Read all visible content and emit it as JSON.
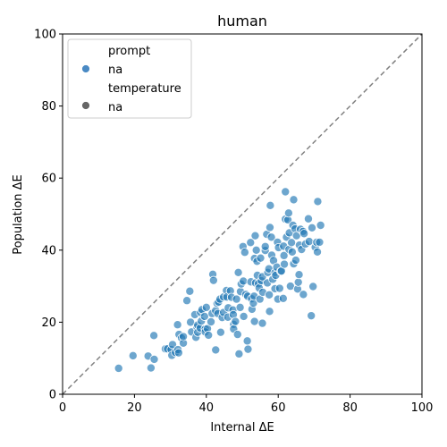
{
  "chart_data": {
    "type": "scatter",
    "title": "human",
    "xlabel": "Internal ΔE",
    "ylabel": "Population ΔE",
    "xlim": [
      0,
      100
    ],
    "ylim": [
      0,
      100
    ],
    "xticks": [
      0,
      20,
      40,
      60,
      80,
      100
    ],
    "yticks": [
      0,
      20,
      40,
      60,
      80,
      100
    ],
    "grid": false,
    "reference_line": "y = x (dashed, gray)",
    "legend": {
      "placement": "top-left",
      "entries": [
        {
          "text": "prompt",
          "kind": "header"
        },
        {
          "text": "na",
          "kind": "marker",
          "color": "#4a8ac4"
        },
        {
          "text": "temperature",
          "kind": "header"
        },
        {
          "text": "na",
          "kind": "marker",
          "color": "#666666"
        }
      ]
    },
    "colors": {
      "point": "#1f77b4",
      "point_edge": "#ffffff",
      "reference_line": "#808080"
    },
    "points": [
      [
        15.6,
        7.2
      ],
      [
        19.6,
        10.7
      ],
      [
        23.8,
        10.6
      ],
      [
        24.6,
        7.3
      ],
      [
        25.5,
        9.7
      ],
      [
        25.4,
        16.3
      ],
      [
        28.6,
        12.6
      ],
      [
        29.2,
        12.6
      ],
      [
        30.2,
        12.4
      ],
      [
        30.4,
        10.8
      ],
      [
        30.6,
        13.8
      ],
      [
        31.4,
        11.6
      ],
      [
        32.1,
        12.4
      ],
      [
        32.3,
        11.5
      ],
      [
        32.0,
        19.3
      ],
      [
        32.4,
        16.6
      ],
      [
        33.1,
        15.6
      ],
      [
        33.6,
        14.2
      ],
      [
        33.6,
        16.0
      ],
      [
        34.6,
        26.0
      ],
      [
        35.4,
        28.6
      ],
      [
        35.6,
        20.0
      ],
      [
        35.9,
        17.3
      ],
      [
        36.8,
        22.1
      ],
      [
        37.1,
        15.8
      ],
      [
        37.4,
        18.6
      ],
      [
        37.6,
        17.2
      ],
      [
        37.6,
        19.2
      ],
      [
        38.4,
        22.7
      ],
      [
        38.3,
        18.4
      ],
      [
        38.6,
        20.3
      ],
      [
        38.8,
        23.5
      ],
      [
        39.5,
        21.6
      ],
      [
        39.7,
        18.1
      ],
      [
        40.0,
        24.1
      ],
      [
        39.7,
        17.3
      ],
      [
        40.3,
        18.2
      ],
      [
        40.6,
        16.4
      ],
      [
        41.3,
        20.1
      ],
      [
        41.6,
        22.4
      ],
      [
        41.8,
        33.3
      ],
      [
        42.0,
        31.6
      ],
      [
        42.6,
        23.2
      ],
      [
        42.6,
        12.3
      ],
      [
        43.0,
        25.2
      ],
      [
        43.2,
        22.4
      ],
      [
        43.4,
        25.6
      ],
      [
        43.8,
        26.4
      ],
      [
        44.4,
        21.3
      ],
      [
        44.0,
        17.2
      ],
      [
        44.8,
        27.0
      ],
      [
        44.8,
        22.7
      ],
      [
        45.6,
        28.8
      ],
      [
        45.7,
        27.0
      ],
      [
        46.0,
        21.4
      ],
      [
        46.1,
        24.0
      ],
      [
        46.7,
        28.7
      ],
      [
        47.0,
        26.9
      ],
      [
        47.4,
        23.4
      ],
      [
        47.5,
        22.1
      ],
      [
        47.6,
        19.4
      ],
      [
        47.6,
        18.1
      ],
      [
        48.1,
        20.2
      ],
      [
        48.4,
        26.4
      ],
      [
        48.7,
        16.6
      ],
      [
        48.9,
        33.8
      ],
      [
        49.1,
        11.2
      ],
      [
        49.4,
        24.1
      ],
      [
        49.5,
        28.5
      ],
      [
        49.7,
        30.6
      ],
      [
        50.3,
        31.4
      ],
      [
        50.4,
        21.6
      ],
      [
        50.2,
        41.0
      ],
      [
        50.7,
        39.4
      ],
      [
        51.0,
        27.7
      ],
      [
        51.4,
        14.8
      ],
      [
        51.5,
        27.2
      ],
      [
        51.6,
        12.5
      ],
      [
        52.3,
        42.1
      ],
      [
        52.4,
        31.2
      ],
      [
        52.6,
        26.5
      ],
      [
        52.7,
        23.6
      ],
      [
        53.1,
        25.3
      ],
      [
        53.3,
        27.2
      ],
      [
        53.4,
        20.2
      ],
      [
        53.4,
        37.7
      ],
      [
        53.6,
        44.0
      ],
      [
        53.7,
        30.9
      ],
      [
        53.9,
        40.0
      ],
      [
        54.1,
        36.9
      ],
      [
        54.2,
        33.0
      ],
      [
        54.5,
        30.7
      ],
      [
        54.7,
        29.5
      ],
      [
        54.9,
        26.4
      ],
      [
        55.1,
        37.8
      ],
      [
        55.3,
        31.5
      ],
      [
        55.6,
        32.6
      ],
      [
        55.7,
        28.3
      ],
      [
        55.6,
        19.7
      ],
      [
        56.4,
        39.9
      ],
      [
        56.4,
        41.0
      ],
      [
        56.8,
        44.4
      ],
      [
        57.0,
        30.9
      ],
      [
        57.1,
        33.8
      ],
      [
        57.4,
        34.8
      ],
      [
        57.5,
        27.6
      ],
      [
        57.6,
        23.0
      ],
      [
        57.7,
        46.3
      ],
      [
        57.8,
        52.4
      ],
      [
        58.2,
        38.6
      ],
      [
        58.1,
        43.6
      ],
      [
        58.5,
        31.9
      ],
      [
        58.7,
        37.1
      ],
      [
        59.1,
        29.3
      ],
      [
        59.1,
        33.8
      ],
      [
        59.3,
        33.0
      ],
      [
        59.6,
        35.3
      ],
      [
        59.8,
        42.2
      ],
      [
        59.9,
        26.4
      ],
      [
        60.1,
        40.7
      ],
      [
        60.4,
        29.4
      ],
      [
        60.7,
        34.1
      ],
      [
        60.9,
        34.2
      ],
      [
        61.4,
        26.6
      ],
      [
        61.5,
        41.1
      ],
      [
        61.6,
        38.5
      ],
      [
        61.7,
        36.1
      ],
      [
        62.0,
        56.2
      ],
      [
        62.0,
        48.6
      ],
      [
        62.3,
        43.6
      ],
      [
        62.7,
        48.4
      ],
      [
        62.9,
        50.3
      ],
      [
        63.0,
        40.2
      ],
      [
        63.1,
        44.8
      ],
      [
        63.4,
        30.0
      ],
      [
        63.7,
        42.1
      ],
      [
        63.9,
        39.5
      ],
      [
        64.1,
        46.9
      ],
      [
        64.3,
        36.2
      ],
      [
        64.3,
        54.0
      ],
      [
        64.7,
        45.9
      ],
      [
        64.9,
        37.2
      ],
      [
        65.1,
        44.0
      ],
      [
        65.4,
        29.2
      ],
      [
        65.6,
        31.1
      ],
      [
        65.8,
        33.2
      ],
      [
        65.9,
        41.4
      ],
      [
        66.2,
        45.8
      ],
      [
        66.5,
        40.2
      ],
      [
        66.9,
        45.2
      ],
      [
        67.0,
        27.7
      ],
      [
        67.2,
        44.6
      ],
      [
        67.6,
        41.7
      ],
      [
        68.4,
        48.7
      ],
      [
        68.6,
        42.4
      ],
      [
        69.2,
        21.8
      ],
      [
        69.4,
        46.2
      ],
      [
        69.7,
        29.9
      ],
      [
        70.3,
        40.8
      ],
      [
        70.7,
        42.2
      ],
      [
        70.9,
        39.5
      ],
      [
        71.0,
        53.5
      ],
      [
        71.5,
        42.2
      ],
      [
        71.8,
        46.9
      ]
    ]
  }
}
